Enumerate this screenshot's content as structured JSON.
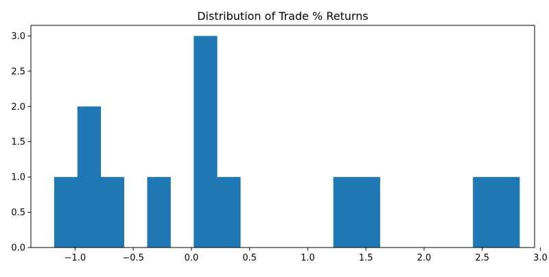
{
  "chart_data": {
    "type": "histogram",
    "title": "Distribution of Trade % Returns",
    "xlabel": "",
    "ylabel": "",
    "xlim": [
      -1.38,
      2.95
    ],
    "ylim": [
      0,
      3.15
    ],
    "x_ticks": [
      -1.0,
      -0.5,
      0.0,
      0.5,
      1.0,
      1.5,
      2.0,
      2.5,
      3.0
    ],
    "x_tick_labels": [
      "−1.0",
      "−0.5",
      "0.0",
      "0.5",
      "1.0",
      "1.5",
      "2.0",
      "2.5",
      "3.0"
    ],
    "y_ticks": [
      0.0,
      0.5,
      1.0,
      1.5,
      2.0,
      2.5,
      3.0
    ],
    "y_tick_labels": [
      "0.0",
      "0.5",
      "1.0",
      "1.5",
      "2.0",
      "2.5",
      "3.0"
    ],
    "bin_edges": [
      -1.18,
      -0.98,
      -0.78,
      -0.58,
      -0.38,
      -0.18,
      0.02,
      0.22,
      0.42,
      0.62,
      0.82,
      1.02,
      1.22,
      1.42,
      1.62,
      1.82,
      2.02,
      2.22,
      2.42,
      2.62,
      2.82
    ],
    "counts": [
      1,
      2,
      1,
      0,
      1,
      0,
      3,
      1,
      0,
      0,
      0,
      0,
      1,
      1,
      0,
      0,
      0,
      0,
      1,
      1
    ],
    "grid": false,
    "legend": "none",
    "colors": {
      "bar": "#1f77b4",
      "axis": "#000000"
    }
  }
}
